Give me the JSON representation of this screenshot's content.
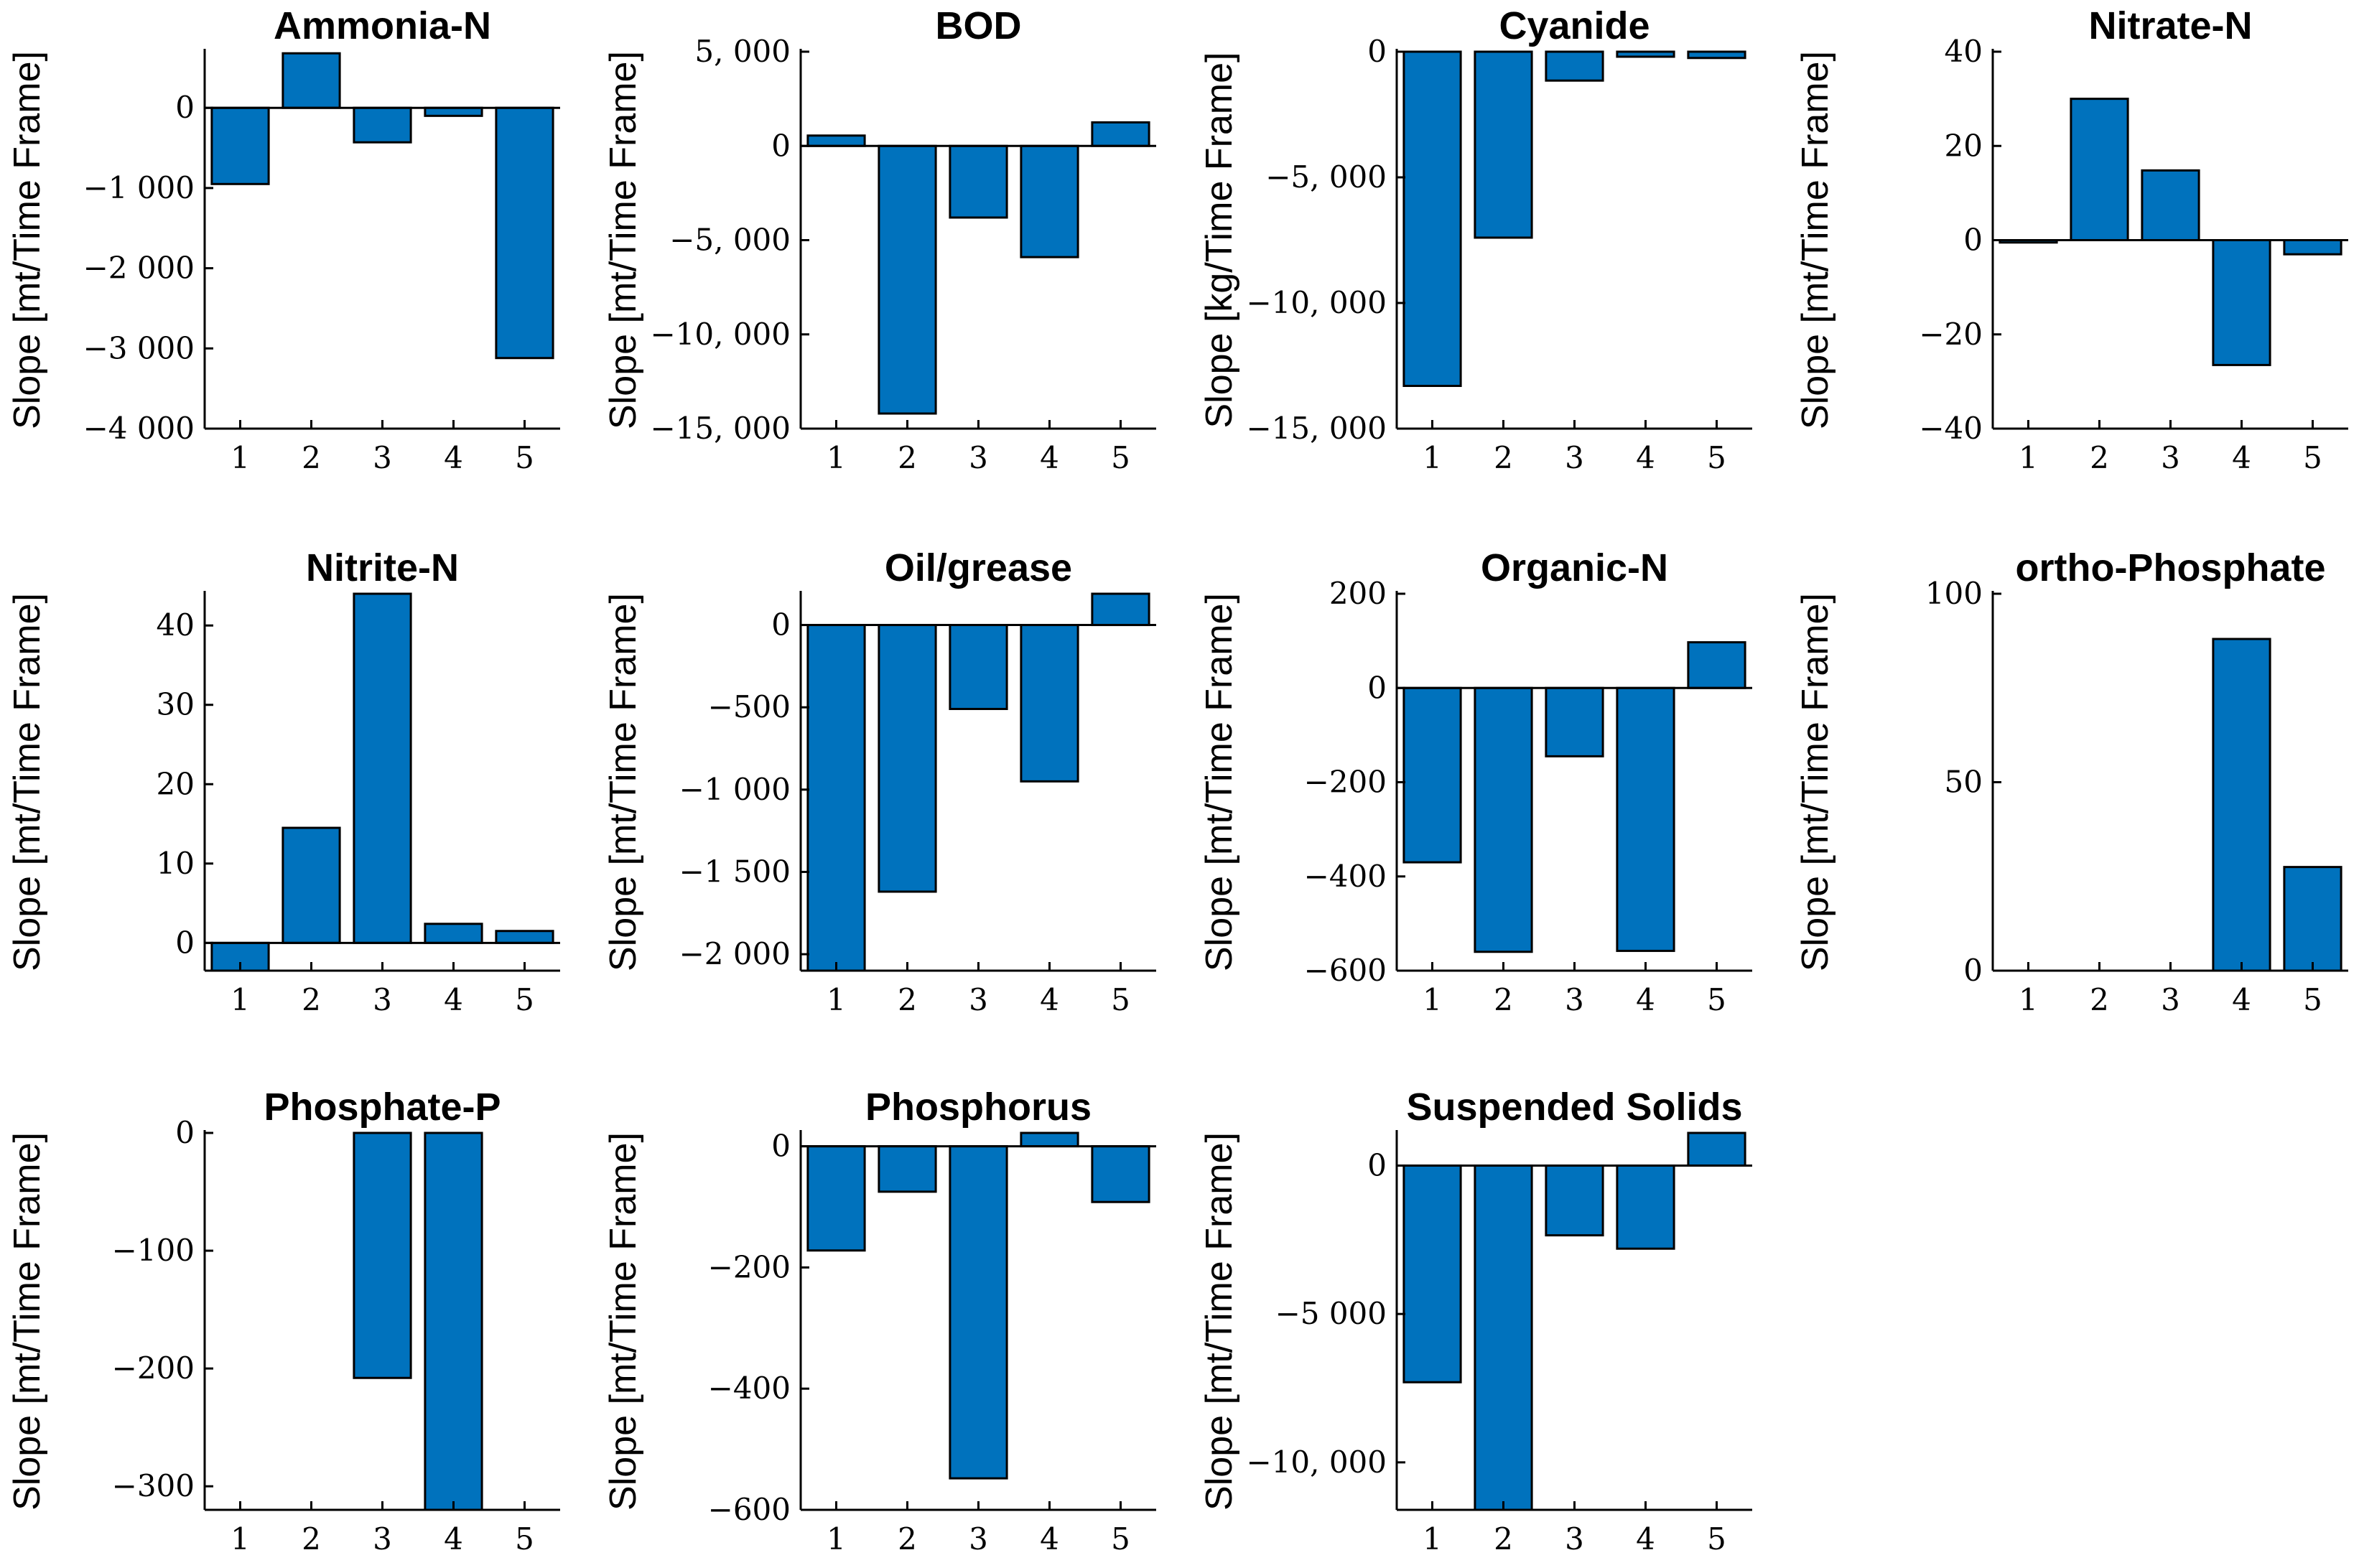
{
  "chart_data": [
    {
      "type": "bar",
      "title": "Ammonia-N",
      "ylabel": "Slope [mt/Time Frame]",
      "categories": [
        "1",
        "2",
        "3",
        "4",
        "5"
      ],
      "values": [
        -950,
        680,
        -430,
        -100,
        -3120
      ],
      "ylim": [
        -4000,
        700
      ],
      "yticks": [
        0,
        -1000,
        -2000,
        -3000,
        -4000
      ],
      "ytick_labels": [
        "0",
        "−1 000",
        "−2 000",
        "−3 000",
        "−4 000"
      ]
    },
    {
      "type": "bar",
      "title": "BOD",
      "ylabel": "Slope [mt/Time Frame]",
      "categories": [
        "1",
        "2",
        "3",
        "4",
        "5"
      ],
      "values": [
        550,
        -14200,
        -3800,
        -5900,
        1250
      ],
      "ylim": [
        -15000,
        5000
      ],
      "yticks": [
        5000,
        0,
        -5000,
        -10000,
        -15000
      ],
      "ytick_labels": [
        "5, 000",
        "0",
        "−5, 000",
        "−10, 000",
        "−15, 000"
      ]
    },
    {
      "type": "bar",
      "title": "Cyanide",
      "ylabel": "Slope [kg/Time Frame]",
      "categories": [
        "1",
        "2",
        "3",
        "4",
        "5"
      ],
      "values": [
        -13300,
        -7400,
        -1150,
        -200,
        -250
      ],
      "ylim": [
        -15000,
        0
      ],
      "yticks": [
        0,
        -5000,
        -10000,
        -15000
      ],
      "ytick_labels": [
        "0",
        "−5, 000",
        "−10, 000",
        "−15, 000"
      ]
    },
    {
      "type": "bar",
      "title": "Nitrate-N",
      "ylabel": "Slope [mt/Time Frame]",
      "categories": [
        "1",
        "2",
        "3",
        "4",
        "5"
      ],
      "values": [
        -0.5,
        30,
        14.8,
        -26.5,
        -3
      ],
      "ylim": [
        -40,
        40
      ],
      "yticks": [
        40,
        20,
        0,
        -20,
        -40
      ],
      "ytick_labels": [
        "40",
        "20",
        "0",
        "−20",
        "−40"
      ]
    },
    {
      "type": "bar",
      "title": "Nitrite-N",
      "ylabel": "Slope [mt/Time Frame]",
      "categories": [
        "1",
        "2",
        "3",
        "4",
        "5"
      ],
      "values": [
        -3.5,
        14.5,
        44,
        2.4,
        1.5
      ],
      "ylim": [
        -3.5,
        44
      ],
      "yticks": [
        40,
        30,
        20,
        10,
        0
      ],
      "ytick_labels": [
        "40",
        "30",
        "20",
        "10",
        "0"
      ]
    },
    {
      "type": "bar",
      "title": "Oil/grease",
      "ylabel": "Slope [mt/Time Frame]",
      "categories": [
        "1",
        "2",
        "3",
        "4",
        "5"
      ],
      "values": [
        -2100,
        -1620,
        -510,
        -950,
        190
      ],
      "ylim": [
        -2100,
        190
      ],
      "yticks": [
        0,
        -500,
        -1000,
        -1500,
        -2000
      ],
      "ytick_labels": [
        "0",
        "−500",
        "−1 000",
        "−1 500",
        "−2 000"
      ]
    },
    {
      "type": "bar",
      "title": "Organic-N",
      "ylabel": "Slope [mt/Time Frame]",
      "categories": [
        "1",
        "2",
        "3",
        "4",
        "5"
      ],
      "values": [
        -370,
        -560,
        -145,
        -558,
        97
      ],
      "ylim": [
        -600,
        200
      ],
      "yticks": [
        200,
        0,
        -200,
        -400,
        -600
      ],
      "ytick_labels": [
        "200",
        "0",
        "−200",
        "−400",
        "−600"
      ]
    },
    {
      "type": "bar",
      "title": "ortho-Phosphate",
      "ylabel": "Slope [mt/Time Frame]",
      "categories": [
        "1",
        "2",
        "3",
        "4",
        "5"
      ],
      "values": [
        0,
        0,
        0,
        88,
        27.5
      ],
      "ylim": [
        0,
        100
      ],
      "yticks": [
        100,
        50,
        0
      ],
      "ytick_labels": [
        "100",
        "50",
        "0"
      ]
    },
    {
      "type": "bar",
      "title": "Phosphate-P",
      "ylabel": "Slope [mt/Time Frame]",
      "categories": [
        "1",
        "2",
        "3",
        "4",
        "5"
      ],
      "values": [
        0,
        0,
        -208,
        -320,
        0
      ],
      "ylim": [
        -320,
        0
      ],
      "yticks": [
        0,
        -100,
        -200,
        -300
      ],
      "ytick_labels": [
        "0",
        "−100",
        "−200",
        "−300"
      ]
    },
    {
      "type": "bar",
      "title": "Phosphorus",
      "ylabel": "Slope [mt/Time Frame]",
      "categories": [
        "1",
        "2",
        "3",
        "4",
        "5"
      ],
      "values": [
        -172,
        -75,
        -548,
        22,
        -92
      ],
      "ylim": [
        -600,
        22
      ],
      "yticks": [
        0,
        -200,
        -400,
        -600
      ],
      "ytick_labels": [
        "0",
        "−200",
        "−400",
        "−600"
      ]
    },
    {
      "type": "bar",
      "title": "Suspended Solids",
      "ylabel": "Slope [mt/Time Frame]",
      "categories": [
        "1",
        "2",
        "3",
        "4",
        "5"
      ],
      "values": [
        -7300,
        -11600,
        -2350,
        -2800,
        1100
      ],
      "ylim": [
        -11600,
        1100
      ],
      "yticks": [
        0,
        -5000,
        -10000
      ],
      "ytick_labels": [
        "0",
        "−5 000",
        "−10, 000"
      ]
    }
  ]
}
